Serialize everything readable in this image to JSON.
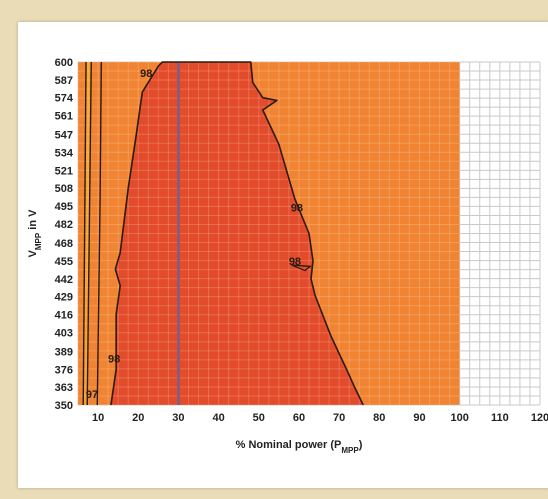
{
  "chart_data": {
    "type": "heatmap",
    "title": "",
    "xlabel_main": "% Nominal power (P",
    "xlabel_sub": "MPP",
    "xlabel_end": ")",
    "ylabel_main": "V",
    "ylabel_sub": "MPP",
    "ylabel_end": " in V",
    "xlim": [
      5,
      120
    ],
    "ylim": [
      350,
      600
    ],
    "x_ticks": [
      10,
      20,
      30,
      40,
      50,
      60,
      70,
      80,
      90,
      100,
      110,
      120
    ],
    "y_ticks": [
      350,
      363,
      376,
      389,
      403,
      416,
      429,
      442,
      455,
      468,
      482,
      495,
      508,
      521,
      534,
      547,
      561,
      574,
      587,
      600
    ],
    "data_extent_x": [
      5,
      100
    ],
    "highlight_line_x": 30,
    "grid": true,
    "colors": {
      "background": "#f08432",
      "region_98": "#e34c2a",
      "region_97": "#f6a12c",
      "contour": "#2b1a10",
      "highlight": "#8a5b78",
      "page": "#e9dcb6"
    },
    "contours": [
      {
        "level": 98,
        "boundary": [
          [
            13.2,
            350
          ],
          [
            14.5,
            376
          ],
          [
            14.5,
            416
          ],
          [
            15.5,
            437
          ],
          [
            14.3,
            449
          ],
          [
            15.5,
            461
          ],
          [
            17.5,
            508
          ],
          [
            19.5,
            547
          ],
          [
            21,
            578
          ],
          [
            25,
            597
          ],
          [
            26,
            600
          ],
          [
            48,
            600
          ],
          [
            48.5,
            585
          ],
          [
            51,
            574
          ],
          [
            54.5,
            572
          ],
          [
            51,
            565
          ],
          [
            55,
            540
          ],
          [
            59,
            500
          ],
          [
            62.5,
            475
          ],
          [
            63.5,
            455
          ],
          [
            63,
            442
          ],
          [
            64,
            430
          ],
          [
            68,
            400
          ],
          [
            72,
            375
          ],
          [
            74,
            362
          ],
          [
            76,
            350
          ]
        ],
        "labels": [
          {
            "text": "98",
            "x": 22,
            "y": 592
          },
          {
            "text": "98",
            "x": 59.5,
            "y": 494
          },
          {
            "text": "98",
            "x": 59,
            "y": 455
          },
          {
            "text": "98",
            "x": 14,
            "y": 384
          }
        ]
      },
      {
        "level": 97,
        "band": [
          [
            6.3,
            350
          ],
          [
            7.3,
            350
          ],
          [
            8.3,
            600
          ],
          [
            7.0,
            600
          ]
        ],
        "extra_line": [
          [
            9.8,
            350
          ],
          [
            10.5,
            500
          ],
          [
            10.8,
            600
          ]
        ],
        "labels": [
          {
            "text": "97",
            "x": 8.5,
            "y": 358
          }
        ]
      }
    ]
  }
}
